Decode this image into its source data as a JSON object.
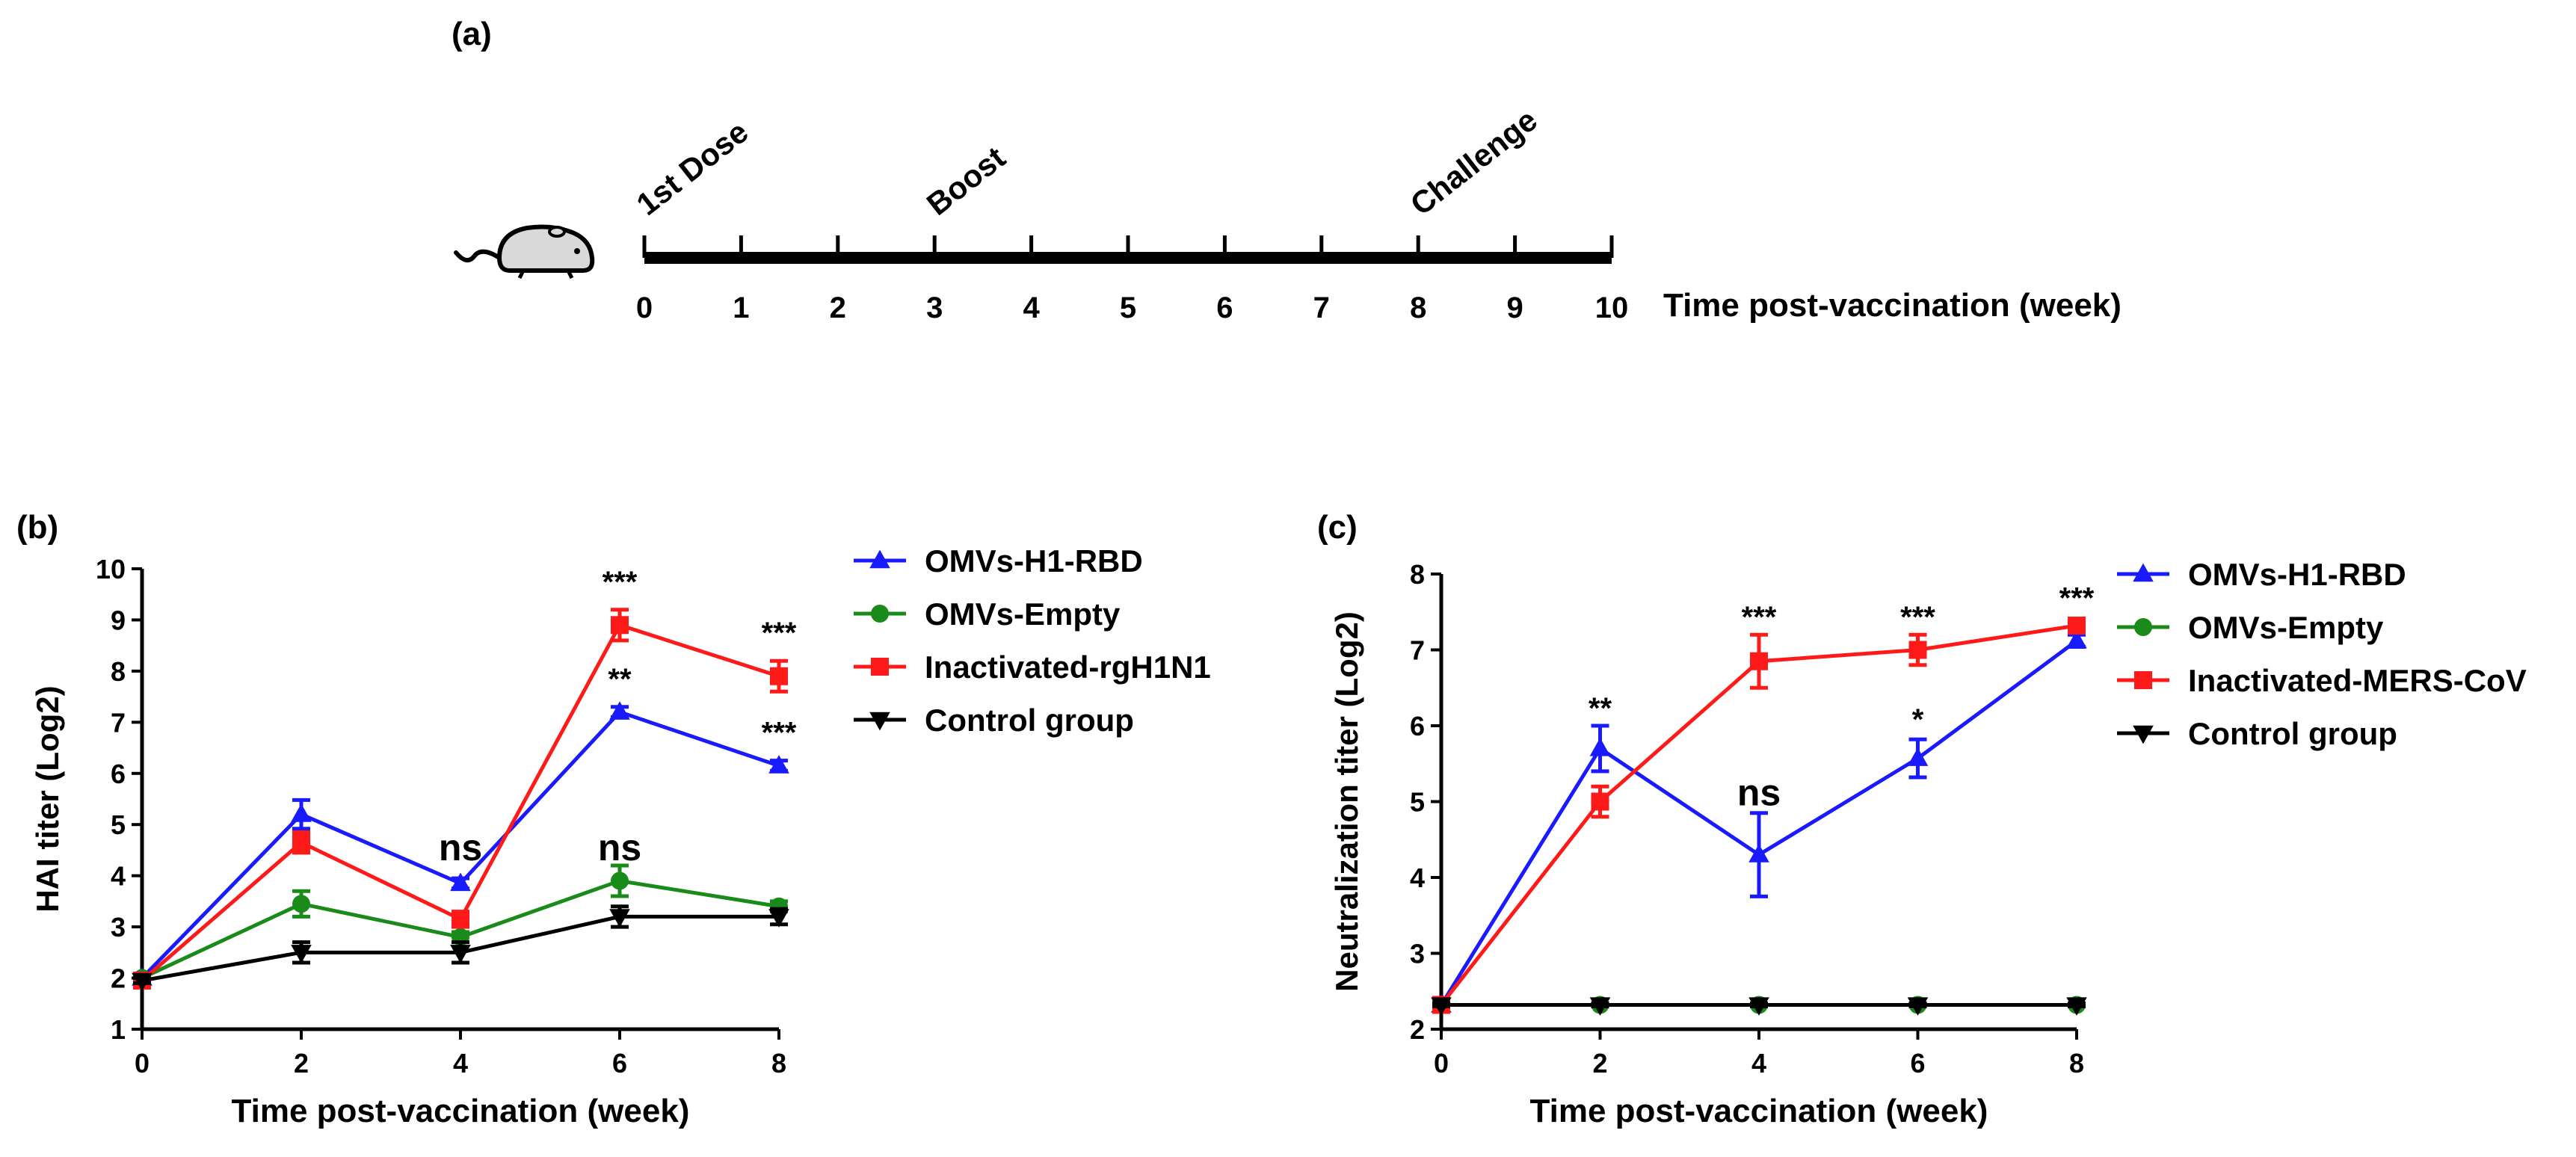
{
  "panels": {
    "a": {
      "label": "(a)"
    },
    "b": {
      "label": "(b)"
    },
    "c": {
      "label": "(c)"
    }
  },
  "timeline": {
    "ticks": [
      "0",
      "1",
      "2",
      "3",
      "4",
      "5",
      "6",
      "7",
      "8",
      "9",
      "10"
    ],
    "axis_label": "Time post-vaccination (week)",
    "events": [
      {
        "label": "1st Dose",
        "week": 0
      },
      {
        "label": "Boost",
        "week": 3
      },
      {
        "label": "Challenge",
        "week": 8
      }
    ],
    "icon": "mouse-icon"
  },
  "colors": {
    "blue": "#1a1aff",
    "green": "#1a8a1a",
    "red": "#ff1a1a",
    "black": "#000000"
  },
  "chart_data": [
    {
      "id": "b",
      "type": "line",
      "xlabel": "Time post-vaccination (week)",
      "ylabel": "HAI titer (Log2)",
      "x": [
        0,
        2,
        4,
        6,
        8
      ],
      "xticks": [
        "0",
        "2",
        "4",
        "6",
        "8"
      ],
      "xlim": [
        0,
        8
      ],
      "ylim": [
        1,
        10
      ],
      "yticks": [
        "1",
        "2",
        "3",
        "4",
        "5",
        "6",
        "7",
        "8",
        "9",
        "10"
      ],
      "legend_position": "right",
      "grid": false,
      "series": [
        {
          "name": "OMVs-H1-RBD",
          "color": "#1a1aff",
          "marker": "triangle-up",
          "values": [
            2.0,
            5.2,
            3.85,
            7.2,
            6.15
          ],
          "errors": [
            0.05,
            0.28,
            0.1,
            0.1,
            0.1
          ]
        },
        {
          "name": "OMVs-Empty",
          "color": "#1a8a1a",
          "marker": "circle",
          "values": [
            2.0,
            3.45,
            2.8,
            3.9,
            3.4
          ],
          "errors": [
            0.05,
            0.25,
            0.1,
            0.3,
            0.1
          ]
        },
        {
          "name": "Inactivated-rgH1N1",
          "color": "#ff1a1a",
          "marker": "square",
          "values": [
            1.95,
            4.65,
            3.15,
            8.9,
            7.9
          ],
          "errors": [
            0.05,
            0.2,
            0.15,
            0.3,
            0.3
          ]
        },
        {
          "name": "Control group",
          "color": "#000000",
          "marker": "triangle-down",
          "values": [
            1.95,
            2.5,
            2.5,
            3.2,
            3.2
          ],
          "errors": [
            0.05,
            0.2,
            0.2,
            0.2,
            0.15
          ]
        }
      ],
      "annotations": [
        {
          "text": "***",
          "x": 6,
          "y": 9.55,
          "size": "small"
        },
        {
          "text": "**",
          "x": 6,
          "y": 7.65,
          "size": "small"
        },
        {
          "text": "***",
          "x": 8,
          "y": 8.55,
          "size": "small"
        },
        {
          "text": "***",
          "x": 8,
          "y": 6.6,
          "size": "small"
        },
        {
          "text": "ns",
          "x": 4,
          "y": 4.3,
          "size": "large"
        },
        {
          "text": "ns",
          "x": 6,
          "y": 4.3,
          "size": "large"
        }
      ]
    },
    {
      "id": "c",
      "type": "line",
      "xlabel": "Time post-vaccination (week)",
      "ylabel": "Neutralization titer (Log2)",
      "x": [
        0,
        2,
        4,
        6,
        8
      ],
      "xticks": [
        "0",
        "2",
        "4",
        "6",
        "8"
      ],
      "xlim": [
        0,
        8
      ],
      "ylim": [
        2,
        8
      ],
      "yticks": [
        "2",
        "3",
        "4",
        "5",
        "6",
        "7",
        "8"
      ],
      "legend_position": "right",
      "grid": false,
      "series": [
        {
          "name": "OMVs-H1-RBD",
          "color": "#1a1aff",
          "marker": "triangle-up",
          "values": [
            2.32,
            5.7,
            4.3,
            5.57,
            7.12
          ],
          "errors": [
            0.05,
            0.3,
            0.55,
            0.25,
            0.08
          ]
        },
        {
          "name": "OMVs-Empty",
          "color": "#1a8a1a",
          "marker": "circle",
          "values": [
            2.32,
            2.32,
            2.32,
            2.32,
            2.32
          ],
          "errors": [
            0.02,
            0.02,
            0.02,
            0.02,
            0.02
          ]
        },
        {
          "name": "Inactivated-MERS-CoV",
          "color": "#ff1a1a",
          "marker": "square",
          "values": [
            2.32,
            5.0,
            6.85,
            7.0,
            7.32
          ],
          "errors": [
            0.05,
            0.2,
            0.35,
            0.2,
            0.05
          ]
        },
        {
          "name": "Control group",
          "color": "#000000",
          "marker": "triangle-down",
          "values": [
            2.32,
            2.32,
            2.32,
            2.32,
            2.32
          ],
          "errors": [
            0.02,
            0.02,
            0.02,
            0.02,
            0.02
          ]
        }
      ],
      "annotations": [
        {
          "text": "**",
          "x": 2,
          "y": 6.1,
          "size": "small"
        },
        {
          "text": "***",
          "x": 4,
          "y": 7.3,
          "size": "small"
        },
        {
          "text": "***",
          "x": 6,
          "y": 7.3,
          "size": "small"
        },
        {
          "text": "***",
          "x": 8,
          "y": 7.55,
          "size": "small"
        },
        {
          "text": "*",
          "x": 6,
          "y": 5.95,
          "size": "small"
        },
        {
          "text": "ns",
          "x": 4,
          "y": 4.95,
          "size": "large"
        }
      ]
    }
  ]
}
